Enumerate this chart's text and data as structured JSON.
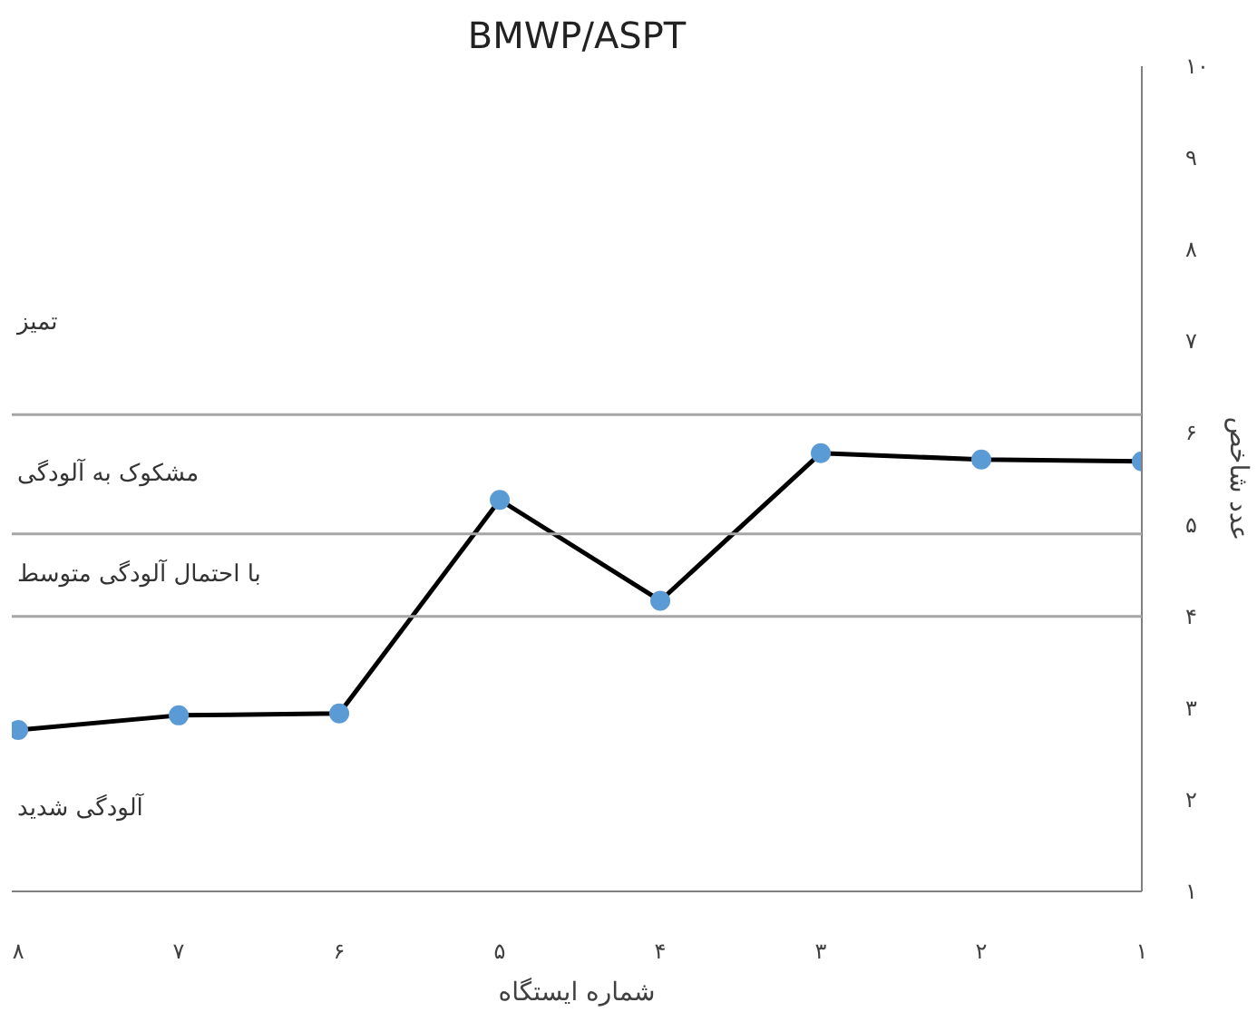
{
  "chart_data": {
    "type": "line",
    "title": "BMWP/ASPT",
    "xlabel": "شماره ایستگاه",
    "ylabel": "عدد شاخص",
    "categories": [
      "۸",
      "۷",
      "۶",
      "۵",
      "۴",
      "۳",
      "۲",
      "۱"
    ],
    "series": [
      {
        "color": "#5b9bd5",
        "values": [
          2.76,
          2.92,
          2.94,
          5.27,
          4.17,
          5.78,
          5.71,
          5.69
        ]
      }
    ],
    "ylim": [
      1,
      10
    ],
    "yticks": [
      {
        "value": 1,
        "label": "۱"
      },
      {
        "value": 2,
        "label": "۲"
      },
      {
        "value": 3,
        "label": "۳"
      },
      {
        "value": 4,
        "label": "۴"
      },
      {
        "value": 5,
        "label": "۵"
      },
      {
        "value": 6,
        "label": "۶"
      },
      {
        "value": 7,
        "label": "۷"
      },
      {
        "value": 8,
        "label": "۸"
      },
      {
        "value": 9,
        "label": "۹"
      },
      {
        "value": 10,
        "label": "۱۰"
      }
    ],
    "ref_lines": [
      {
        "axis": "y",
        "value": 6.2,
        "color": "#a6a6a6"
      },
      {
        "axis": "y",
        "value": 4.9,
        "color": "#a6a6a6"
      },
      {
        "axis": "y",
        "value": 4.0,
        "color": "#a6a6a6"
      }
    ],
    "annotations": [
      "تمیز",
      "مشکوک به آلودگی",
      "با احتمال آلودگی متوسط",
      "آلودگی شدید"
    ],
    "grid": false,
    "marker": "circle",
    "line_style": "solid"
  }
}
